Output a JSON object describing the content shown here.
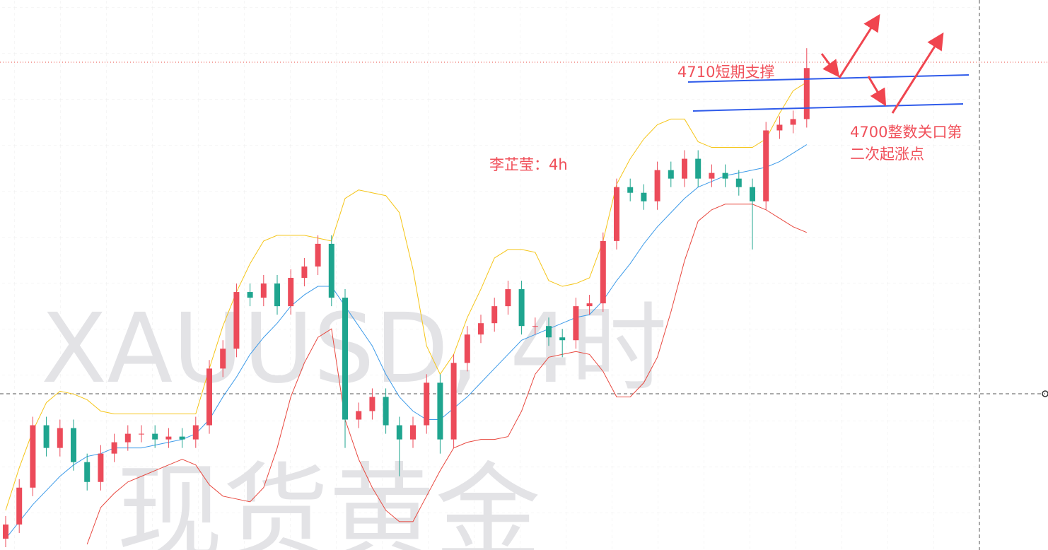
{
  "chart_data": {
    "type": "candlestick",
    "watermark": [
      "XAUUSD, 4时",
      "现货黄金"
    ],
    "annotations": [
      "4710短期支撑",
      "4700整数关口第",
      "二次起涨点",
      "李芷莹：4h"
    ],
    "ylim": [
      4544,
      4738
    ],
    "up_color": "#ec4b5a",
    "down_color": "#1fa58f",
    "open": [
      4548,
      4553,
      4566,
      4588,
      4580,
      4587,
      4575,
      4568,
      4578,
      4582,
      4585,
      4585,
      4583,
      4584,
      4583,
      4588,
      4608,
      4615,
      4635,
      4633,
      4638,
      4630,
      4640,
      4644,
      4652,
      4633,
      4590,
      4593,
      4598,
      4588,
      4583,
      4588,
      4603,
      4583,
      4610,
      4620,
      4624,
      4630,
      4636,
      4623,
      4623,
      4619,
      4618,
      4630,
      4631,
      4653,
      4672,
      4670,
      4667,
      4678,
      4675,
      4682,
      4675,
      4677,
      4675,
      4672,
      4667,
      4692,
      4694,
      4696
    ],
    "high": [
      4556,
      4569,
      4591,
      4591,
      4590,
      4590,
      4578,
      4581,
      4585,
      4588,
      4588,
      4588,
      4587,
      4587,
      4591,
      4611,
      4618,
      4638,
      4638,
      4641,
      4641,
      4643,
      4647,
      4655,
      4655,
      4636,
      4596,
      4601,
      4601,
      4591,
      4591,
      4606,
      4606,
      4613,
      4623,
      4627,
      4633,
      4639,
      4639,
      4626,
      4626,
      4622,
      4633,
      4634,
      4656,
      4675,
      4675,
      4673,
      4681,
      4681,
      4685,
      4685,
      4680,
      4680,
      4678,
      4675,
      4695,
      4697,
      4699,
      4721
    ],
    "low": [
      4545,
      4550,
      4563,
      4577,
      4577,
      4572,
      4565,
      4565,
      4575,
      4579,
      4582,
      4580,
      4580,
      4580,
      4580,
      4585,
      4605,
      4612,
      4630,
      4630,
      4627,
      4627,
      4637,
      4641,
      4630,
      4580,
      4587,
      4590,
      4585,
      4570,
      4580,
      4585,
      4578,
      4580,
      4607,
      4617,
      4621,
      4627,
      4620,
      4620,
      4616,
      4612,
      4615,
      4627,
      4628,
      4650,
      4667,
      4664,
      4664,
      4672,
      4672,
      4672,
      4672,
      4672,
      4669,
      4650,
      4664,
      4689,
      4691,
      4693
    ],
    "close": [
      4553,
      4566,
      4588,
      4580,
      4587,
      4575,
      4568,
      4578,
      4582,
      4585,
      4585,
      4583,
      4584,
      4583,
      4588,
      4608,
      4615,
      4635,
      4633,
      4638,
      4630,
      4640,
      4644,
      4652,
      4633,
      4590,
      4593,
      4598,
      4588,
      4583,
      4588,
      4603,
      4583,
      4610,
      4620,
      4624,
      4630,
      4636,
      4623,
      4623,
      4619,
      4618,
      4630,
      4631,
      4653,
      4672,
      4670,
      4667,
      4678,
      4675,
      4682,
      4675,
      4677,
      4675,
      4672,
      4667,
      4692,
      4694,
      4696,
      4714
    ],
    "lines": [
      {
        "color": "#f5c518",
        "values": [
          4558,
          4573,
          4586,
          4596,
          4600,
          4599,
          4597,
          4593,
          4592,
          4592,
          4592,
          4592,
          4592,
          4592,
          4592,
          4608,
          4623,
          4635,
          4645,
          4653,
          4655,
          4655,
          4655,
          4654,
          4653,
          4668,
          4671,
          4670,
          4669,
          4663,
          4643,
          4616,
          4606,
          4613,
          4626,
          4636,
          4647,
          4650,
          4650,
          4649,
          4639,
          4637,
          4638,
          4640,
          4653,
          4673,
          4682,
          4689,
          4694,
          4696,
          4696,
          4688,
          4686,
          4686,
          4686,
          4686,
          4689,
          4698,
          4706,
          4709
        ]
      },
      {
        "color": "#3d9be9",
        "values": [
          4548,
          4554,
          4560,
          4565,
          4570,
          4574,
          4577,
          4578,
          4580,
          4580,
          4580,
          4581,
          4582,
          4583,
          4585,
          4590,
          4598,
          4605,
          4613,
          4619,
          4624,
          4630,
          4634,
          4637,
          4637,
          4630,
          4623,
          4616,
          4606,
          4598,
          4593,
          4590,
          4590,
          4594,
          4598,
          4603,
          4608,
          4613,
          4618,
          4620,
          4622,
          4624,
          4626,
          4627,
          4632,
          4639,
          4645,
          4652,
          4658,
          4663,
          4668,
          4672,
          4674,
          4676,
          4677,
          4678,
          4679,
          4681,
          4684,
          4687
        ]
      },
      {
        "color": "#e8483f",
        "values": [
          null,
          null,
          null,
          null,
          null,
          null,
          4546,
          4559,
          4564,
          4568,
          4570,
          4572,
          4574,
          4576,
          4574,
          4567,
          4563,
          4562,
          4561,
          4566,
          4580,
          4598,
          4610,
          4619,
          4622,
          4590,
          4576,
          4566,
          4558,
          4554,
          4554,
          4563,
          4572,
          4580,
          4582,
          4583,
          4583,
          4584,
          4593,
          4606,
          4612,
          4613,
          4614,
          4613,
          4607,
          4598,
          4598,
          4603,
          4612,
          4628,
          4646,
          4660,
          4664,
          4666,
          4666,
          4666,
          4664,
          4661,
          4658,
          4656
        ]
      }
    ]
  }
}
